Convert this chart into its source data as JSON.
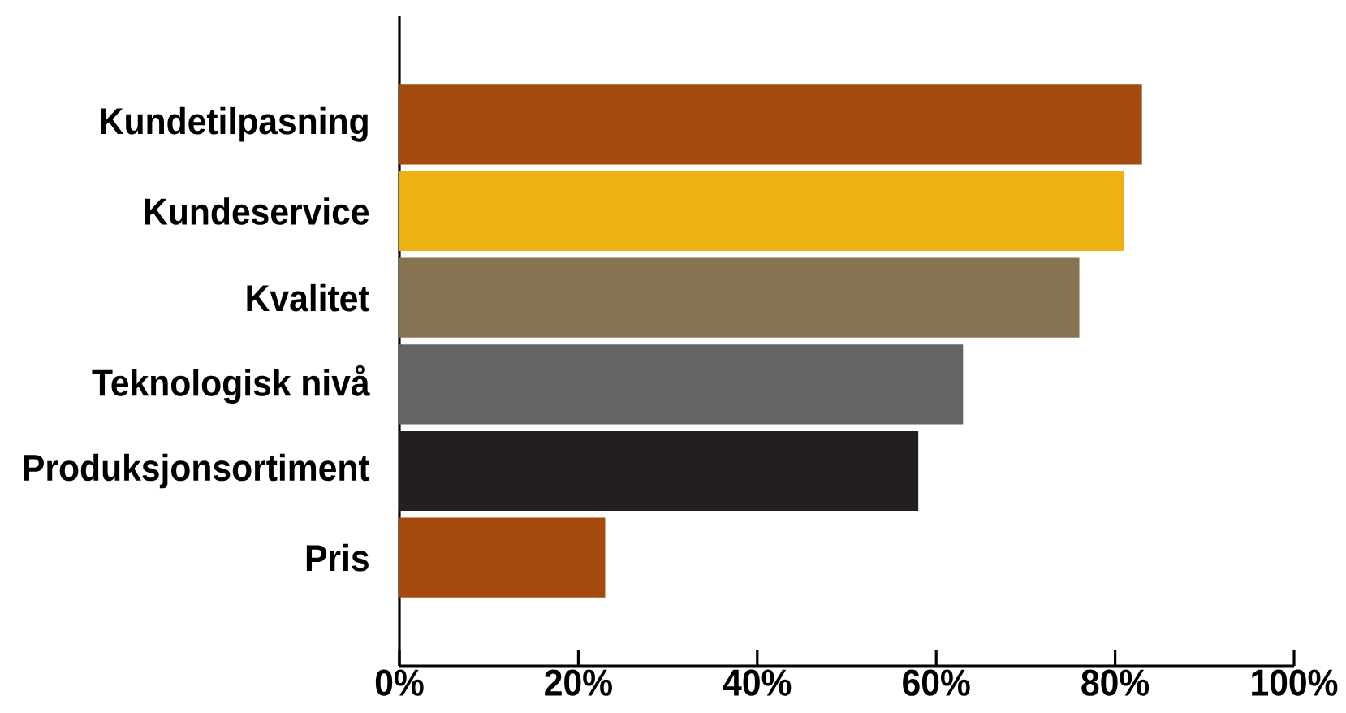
{
  "chart_data": {
    "type": "bar",
    "orientation": "horizontal",
    "categories": [
      "Kundetilpasning",
      "Kundeservice",
      "Kvalitet",
      "Teknologisk nivå",
      "Produksjonsortiment",
      "Pris"
    ],
    "values": [
      83,
      81,
      76,
      63,
      58,
      23
    ],
    "colors": [
      "#a34a0c",
      "#edb212",
      "#877251",
      "#646464",
      "#231f20",
      "#a34a0c"
    ],
    "xlim": [
      0,
      100
    ],
    "xticks": [
      {
        "value": 0,
        "label": "0%"
      },
      {
        "value": 20,
        "label": "20%"
      },
      {
        "value": 40,
        "label": "40%"
      },
      {
        "value": 60,
        "label": "60%"
      },
      {
        "value": 80,
        "label": "80%"
      },
      {
        "value": 100,
        "label": "100%"
      }
    ]
  }
}
